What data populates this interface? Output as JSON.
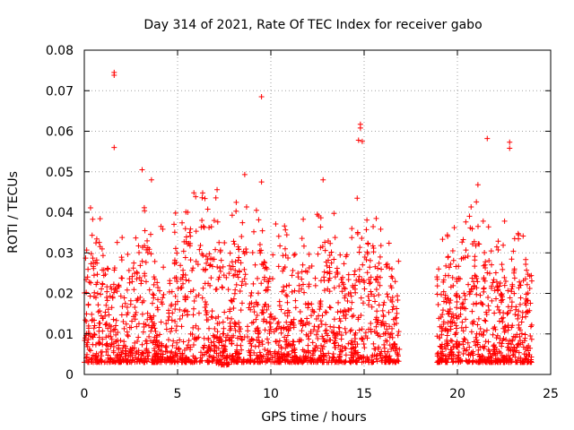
{
  "chart_data": {
    "type": "scatter",
    "title": "Day 314 of 2021, Rate Of TEC Index for receiver gabo",
    "xlabel": "GPS time / hours",
    "ylabel": "ROTI / TECUs",
    "xlim": [
      0,
      25
    ],
    "ylim": [
      0,
      0.08
    ],
    "xticks": [
      0,
      5,
      10,
      15,
      20,
      25
    ],
    "yticks": [
      0,
      0.01,
      0.02,
      0.03,
      0.04,
      0.05,
      0.06,
      0.07,
      0.08
    ],
    "xtick_labels": [
      "0",
      "5",
      "10",
      "15",
      "20",
      "25"
    ],
    "ytick_labels": [
      "0",
      "0.01",
      "0.02",
      "0.03",
      "0.04",
      "0.05",
      "0.06",
      "0.07",
      "0.08"
    ],
    "grid": true,
    "marker": "+",
    "color": "#ff0000",
    "data_gap_hours": [
      16.9,
      18.9
    ],
    "notable_points": [
      {
        "x": 1.6,
        "y": 0.0745
      },
      {
        "x": 1.6,
        "y": 0.0738
      },
      {
        "x": 1.6,
        "y": 0.056
      },
      {
        "x": 3.1,
        "y": 0.0505
      },
      {
        "x": 3.6,
        "y": 0.048
      },
      {
        "x": 8.6,
        "y": 0.0493
      },
      {
        "x": 9.5,
        "y": 0.0685
      },
      {
        "x": 9.5,
        "y": 0.0475
      },
      {
        "x": 12.8,
        "y": 0.048
      },
      {
        "x": 14.8,
        "y": 0.0617
      },
      {
        "x": 14.8,
        "y": 0.0608
      },
      {
        "x": 14.7,
        "y": 0.0578
      },
      {
        "x": 14.9,
        "y": 0.0575
      },
      {
        "x": 21.6,
        "y": 0.0582
      },
      {
        "x": 22.8,
        "y": 0.0573
      },
      {
        "x": 22.8,
        "y": 0.0558
      },
      {
        "x": 21.1,
        "y": 0.0468
      }
    ],
    "envelope": {
      "hours": [
        0,
        0.5,
        1,
        1.5,
        2,
        2.5,
        3,
        3.5,
        4,
        4.5,
        5,
        5.5,
        6,
        6.5,
        7,
        7.5,
        8,
        8.5,
        9,
        9.5,
        10,
        10.5,
        11,
        11.5,
        12,
        12.5,
        13,
        13.5,
        14,
        14.5,
        15,
        15.5,
        16,
        16.5,
        16.9,
        18.9,
        19.5,
        20,
        20.5,
        21,
        21.5,
        22,
        22.5,
        23,
        23.5,
        24
      ],
      "upper": [
        0.03,
        0.034,
        0.03,
        0.02,
        0.022,
        0.025,
        0.032,
        0.03,
        0.026,
        0.022,
        0.03,
        0.034,
        0.034,
        0.036,
        0.035,
        0.03,
        0.032,
        0.03,
        0.03,
        0.03,
        0.022,
        0.03,
        0.028,
        0.025,
        0.028,
        0.03,
        0.034,
        0.03,
        0.028,
        0.032,
        0.033,
        0.03,
        0.028,
        0.024,
        0.02,
        0.025,
        0.028,
        0.025,
        0.03,
        0.033,
        0.032,
        0.024,
        0.027,
        0.025,
        0.025,
        0.025
      ],
      "lower": [
        0.003,
        0.003,
        0.003,
        0.003,
        0.003,
        0.003,
        0.003,
        0.003,
        0.003,
        0.003,
        0.003,
        0.003,
        0.003,
        0.003,
        0.003,
        0.002,
        0.003,
        0.003,
        0.003,
        0.003,
        0.003,
        0.003,
        0.003,
        0.003,
        0.003,
        0.003,
        0.003,
        0.003,
        0.003,
        0.003,
        0.003,
        0.003,
        0.003,
        0.003,
        0.003,
        0.003,
        0.003,
        0.003,
        0.003,
        0.003,
        0.003,
        0.003,
        0.003,
        0.003,
        0.003,
        0.003
      ]
    }
  }
}
